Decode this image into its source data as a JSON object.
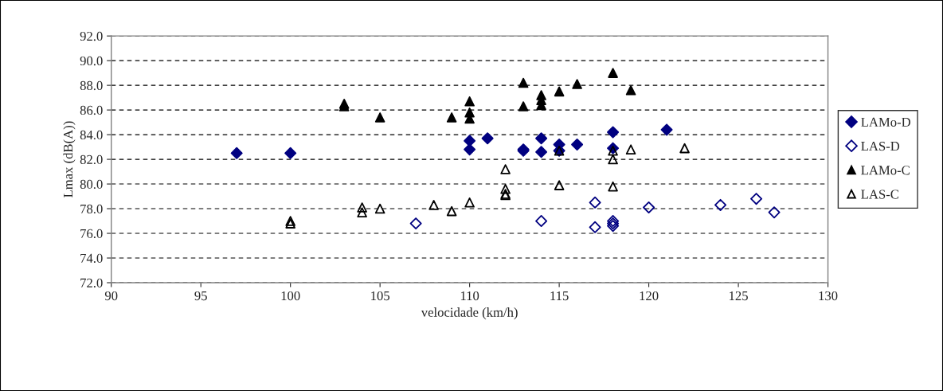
{
  "chart_data": {
    "type": "scatter",
    "xlabel": "velocidade (km/h)",
    "ylabel": "Lmax (dB(A))",
    "xlim": [
      90,
      130
    ],
    "xticks": [
      90,
      95,
      100,
      105,
      110,
      115,
      120,
      125,
      130
    ],
    "ylim": [
      72,
      92
    ],
    "yticks": [
      {
        "value": 72,
        "label": "72.0"
      },
      {
        "value": 74,
        "label": "74.0"
      },
      {
        "value": 76,
        "label": "76.0"
      },
      {
        "value": 78,
        "label": "78.0"
      },
      {
        "value": 80,
        "label": "80.0"
      },
      {
        "value": 82,
        "label": "82.0"
      },
      {
        "value": 84,
        "label": "84.0"
      },
      {
        "value": 86,
        "label": "86.0"
      },
      {
        "value": 88,
        "label": "88.0"
      },
      {
        "value": 90,
        "label": "90.0"
      },
      {
        "value": 92,
        "label": "92.0"
      }
    ],
    "grid": "y",
    "legend": "right",
    "series": [
      {
        "name": "LAMo-D",
        "color": "#000080",
        "marker": "diamond",
        "x": [
          97,
          100,
          110,
          110,
          111,
          113,
          113,
          114,
          114,
          115,
          115,
          116,
          118,
          118,
          121
        ],
        "values": [
          82.5,
          82.5,
          83.5,
          82.8,
          83.7,
          82.7,
          82.8,
          83.7,
          82.6,
          83.2,
          82.7,
          83.2,
          84.2,
          82.9,
          84.4
        ]
      },
      {
        "name": "LAS-D",
        "color": "#000080",
        "marker": "diamond",
        "x": [
          107,
          114,
          117,
          117,
          118,
          118,
          118,
          120,
          124,
          126,
          127
        ],
        "values": [
          76.8,
          77.0,
          78.5,
          76.5,
          77.0,
          76.8,
          76.6,
          78.1,
          78.3,
          78.8,
          77.7
        ]
      },
      {
        "name": "LAMo-C",
        "color": "#000000",
        "marker": "triangle",
        "x": [
          103,
          103,
          105,
          109,
          110,
          110,
          110,
          113,
          113,
          114,
          114,
          114,
          115,
          116,
          118,
          119
        ],
        "values": [
          86.5,
          86.3,
          85.4,
          85.4,
          86.7,
          85.8,
          85.3,
          88.2,
          86.3,
          87.2,
          86.8,
          86.4,
          87.5,
          88.1,
          89.0,
          87.6
        ]
      },
      {
        "name": "LAS-C",
        "color": "#000000",
        "marker": "triangle",
        "x": [
          100,
          100,
          104,
          104,
          105,
          108,
          109,
          110,
          112,
          112,
          112,
          112,
          115,
          115,
          118,
          118,
          118,
          119,
          122
        ],
        "values": [
          77.0,
          76.8,
          78.1,
          77.7,
          78.0,
          78.3,
          77.8,
          78.5,
          81.2,
          79.6,
          79.2,
          79.1,
          82.7,
          79.9,
          82.7,
          82.0,
          79.8,
          82.8,
          82.9
        ]
      }
    ]
  }
}
